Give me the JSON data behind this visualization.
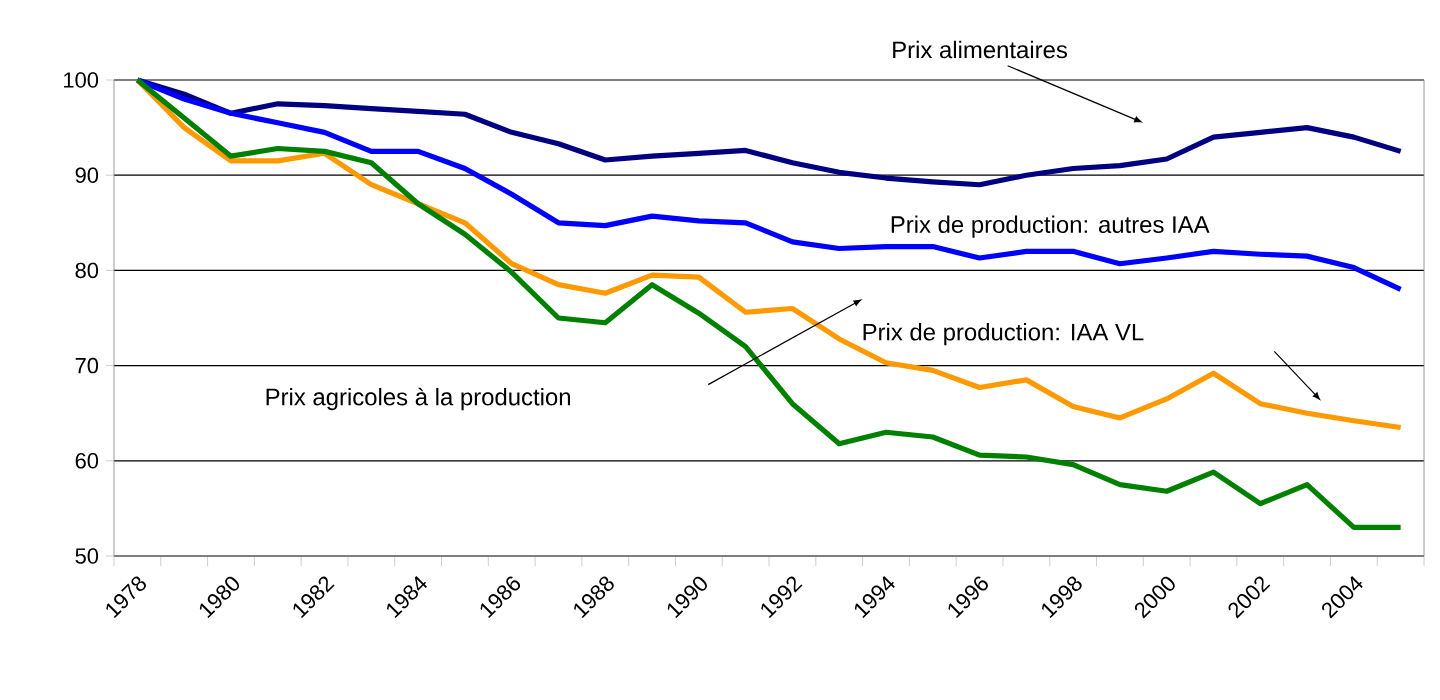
{
  "chart_data": {
    "type": "line",
    "categories": [
      "1978",
      null,
      "1980",
      null,
      "1982",
      null,
      "1984",
      null,
      "1986",
      null,
      "1988",
      null,
      "1990",
      null,
      "1992",
      null,
      "1994",
      null,
      "1996",
      null,
      "1998",
      null,
      "2000",
      null,
      "2002",
      null,
      "2004",
      null
    ],
    "series": [
      {
        "color": "#000080",
        "values": [
          100,
          98.5,
          96.5,
          97.5,
          97.3,
          97,
          96.7,
          96.4,
          94.5,
          93.3,
          91.6,
          92,
          92.3,
          92.6,
          91.3,
          90.3,
          89.7,
          89.3,
          89,
          90,
          90.7,
          91,
          91.7,
          94,
          94.5,
          95,
          94,
          92.5
        ]
      },
      {
        "color": "#0000ff",
        "values": [
          100,
          98,
          96.5,
          95.5,
          94.5,
          92.5,
          92.5,
          90.7,
          88,
          85,
          84.7,
          85.7,
          85.2,
          85,
          83,
          82.3,
          82.5,
          82.5,
          81.3,
          82,
          82,
          80.7,
          81.3,
          82,
          81.7,
          81.5,
          80.3,
          78
        ]
      },
      {
        "color": "#ff9900",
        "values": [
          100,
          95,
          91.5,
          91.5,
          92.3,
          89,
          87,
          85,
          80.7,
          78.5,
          77.6,
          79.5,
          79.3,
          75.6,
          76,
          72.8,
          70.3,
          69.5,
          67.7,
          68.5,
          65.7,
          64.5,
          66.5,
          69.2,
          66,
          65,
          64.2,
          63.5
        ]
      },
      {
        "color": "#008000",
        "values": [
          100,
          96,
          92,
          92.8,
          92.5,
          91.3,
          87,
          83.8,
          79.8,
          75,
          74.5,
          78.5,
          75.5,
          72,
          66,
          61.8,
          63,
          62.5,
          60.6,
          60.4,
          59.6,
          57.5,
          56.8,
          58.8,
          55.5,
          57.5,
          53,
          53
        ]
      }
    ],
    "annotations": [
      "Prix alimentaires",
      "Prix de production: autres IAA",
      "Prix de production: IAA VL",
      "Prix agricoles à la production"
    ],
    "ylim": [
      50,
      100
    ],
    "yticks": [
      50,
      60,
      70,
      80,
      90,
      100
    ],
    "grid": "y",
    "marker": "none",
    "line_style": "solid"
  }
}
